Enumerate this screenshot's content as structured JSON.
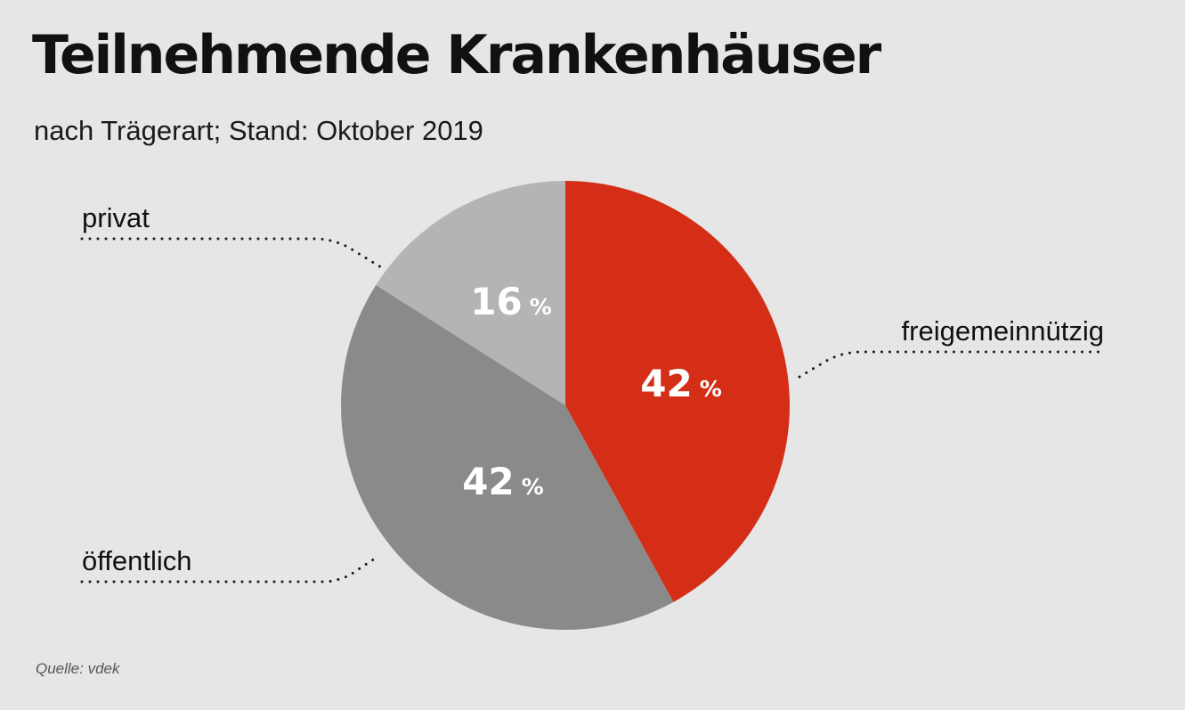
{
  "chart_data": {
    "type": "pie",
    "title": "Teilnehmende Krankenhäuser",
    "subtitle": "nach Trägerart; Stand: Oktober 2019",
    "source": "Quelle: vdek",
    "unit": "%",
    "slices": [
      {
        "label": "freigemeinnützig",
        "value": 42,
        "color": "#d42f16"
      },
      {
        "label": "öffentlich",
        "value": 42,
        "color": "#8a8a8a"
      },
      {
        "label": "privat",
        "value": 16,
        "color": "#b4b4b4"
      }
    ]
  }
}
